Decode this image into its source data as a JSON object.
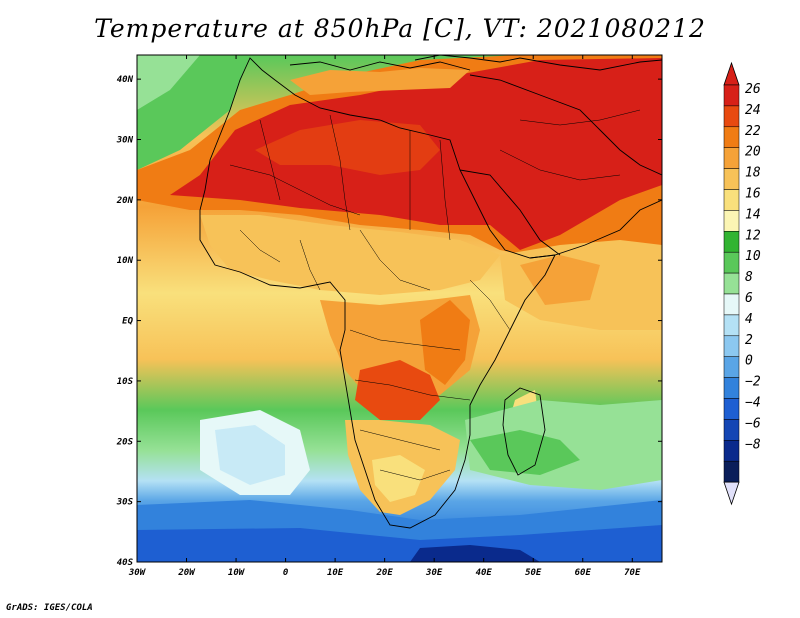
{
  "title": "Temperature at 850hPa [C], VT: 2021080212",
  "credit": "GrADS: IGES/COLA",
  "map": {
    "lon_range": [
      -30,
      76
    ],
    "lat_range": [
      -40,
      44
    ],
    "lon_ticks": [
      {
        "value": -30,
        "label": "30W"
      },
      {
        "value": -20,
        "label": "20W"
      },
      {
        "value": -10,
        "label": "10W"
      },
      {
        "value": 0,
        "label": "0"
      },
      {
        "value": 10,
        "label": "10E"
      },
      {
        "value": 20,
        "label": "20E"
      },
      {
        "value": 30,
        "label": "30E"
      },
      {
        "value": 40,
        "label": "40E"
      },
      {
        "value": 50,
        "label": "50E"
      },
      {
        "value": 60,
        "label": "60E"
      },
      {
        "value": 70,
        "label": "70E"
      }
    ],
    "lat_ticks": [
      {
        "value": 40,
        "label": "40N"
      },
      {
        "value": 30,
        "label": "30N"
      },
      {
        "value": 20,
        "label": "20N"
      },
      {
        "value": 10,
        "label": "10N"
      },
      {
        "value": 0,
        "label": "EQ"
      },
      {
        "value": -10,
        "label": "10S"
      },
      {
        "value": -20,
        "label": "20S"
      },
      {
        "value": -30,
        "label": "30S"
      },
      {
        "value": -40,
        "label": "40S"
      }
    ]
  },
  "colorbar": {
    "labels": [
      "26",
      "24",
      "22",
      "20",
      "18",
      "16",
      "14",
      "12",
      "10",
      "8",
      "6",
      "4",
      "2",
      "0",
      "−2",
      "−4",
      "−6",
      "−8"
    ],
    "colors": [
      "#d72018",
      "#e84a10",
      "#f07c14",
      "#f5a238",
      "#f7c258",
      "#f9e07c",
      "#fbf5b4",
      "#32b432",
      "#5ac85a",
      "#96e196",
      "#e6f8f8",
      "#b4e1f5",
      "#8cc8f0",
      "#5aa5e6",
      "#3282dc",
      "#1e5fd2",
      "#1446b4",
      "#0a2a8c",
      "#0a1e5a"
    ],
    "top_arrow_color": "#d72018",
    "bottom_arrow_color": "#e1e1fa"
  }
}
